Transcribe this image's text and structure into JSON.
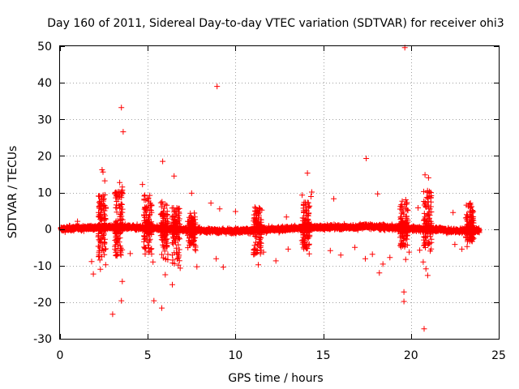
{
  "chart_data": {
    "type": "scatter",
    "title": "Day 160 of 2011, Sidereal Day-to-day VTEC variation (SDTVAR) for receiver ohi3",
    "xlabel": "GPS time / hours",
    "ylabel": "SDTVAR / TECUs",
    "xlim": [
      0,
      25
    ],
    "ylim": [
      -30,
      50
    ],
    "xticks": [
      "0",
      "5",
      "10",
      "15",
      "20",
      "25"
    ],
    "yticks": [
      "-30",
      "-20",
      "-10",
      "0",
      "10",
      "20",
      "30",
      "40",
      "50"
    ],
    "grid": true,
    "marker": "+",
    "series": [
      {
        "name": "SDTVAR",
        "color": "#ff0000",
        "outliers": [
          [
            3.5,
            33.2
          ],
          [
            3.6,
            26.6
          ],
          [
            8.95,
            39.0
          ],
          [
            19.65,
            49.6
          ],
          [
            17.45,
            19.3
          ],
          [
            14.1,
            15.3
          ],
          [
            2.4,
            16.2
          ],
          [
            2.45,
            15.6
          ],
          [
            2.55,
            13.2
          ],
          [
            5.85,
            18.5
          ],
          [
            6.5,
            14.5
          ],
          [
            3.4,
            12.7
          ],
          [
            3.55,
            11.5
          ],
          [
            4.7,
            12.2
          ],
          [
            20.8,
            14.8
          ],
          [
            21.0,
            14.0
          ],
          [
            2.5,
            6.5
          ],
          [
            8.6,
            7.1
          ],
          [
            9.1,
            5.5
          ],
          [
            12.9,
            3.3
          ],
          [
            15.6,
            8.3
          ],
          [
            18.1,
            9.6
          ],
          [
            19.5,
            7.6
          ],
          [
            19.7,
            8.0
          ],
          [
            20.4,
            5.8
          ],
          [
            20.95,
            8.5
          ],
          [
            14.35,
            10.1
          ],
          [
            14.3,
            8.9
          ],
          [
            13.8,
            9.3
          ],
          [
            11.5,
            5.2
          ],
          [
            7.5,
            9.8
          ],
          [
            1.0,
            2.1
          ],
          [
            10.0,
            4.8
          ],
          [
            22.4,
            4.5
          ],
          [
            3.0,
            -23.3
          ],
          [
            3.5,
            -19.6
          ],
          [
            3.55,
            -14.3
          ],
          [
            5.35,
            -19.6
          ],
          [
            5.8,
            -21.6
          ],
          [
            6.4,
            -15.2
          ],
          [
            6.0,
            -12.5
          ],
          [
            1.9,
            -12.3
          ],
          [
            1.8,
            -8.9
          ],
          [
            2.3,
            -11.0
          ],
          [
            2.6,
            -9.8
          ],
          [
            4.0,
            -6.7
          ],
          [
            5.3,
            -9.0
          ],
          [
            6.85,
            -10.7
          ],
          [
            7.8,
            -10.3
          ],
          [
            9.3,
            -10.4
          ],
          [
            8.9,
            -8.1
          ],
          [
            11.3,
            -9.8
          ],
          [
            11.1,
            -6.8
          ],
          [
            11.6,
            -6.3
          ],
          [
            12.3,
            -8.7
          ],
          [
            13.0,
            -5.5
          ],
          [
            14.2,
            -6.8
          ],
          [
            15.4,
            -5.9
          ],
          [
            16.0,
            -7.1
          ],
          [
            17.8,
            -6.9
          ],
          [
            18.2,
            -12.0
          ],
          [
            18.4,
            -9.6
          ],
          [
            18.8,
            -7.8
          ],
          [
            19.6,
            -17.2
          ],
          [
            19.6,
            -19.8
          ],
          [
            19.7,
            -8.3
          ],
          [
            19.9,
            -6.3
          ],
          [
            20.5,
            -5.8
          ],
          [
            20.75,
            -27.3
          ],
          [
            20.85,
            -10.9
          ],
          [
            20.95,
            -12.7
          ],
          [
            20.7,
            -9.0
          ],
          [
            21.1,
            -6.0
          ],
          [
            23.2,
            -4.8
          ],
          [
            22.5,
            -4.2
          ],
          [
            22.9,
            -5.5
          ],
          [
            17.4,
            -8.1
          ],
          [
            16.8,
            -5.0
          ]
        ],
        "spikes": [
          [
            2.4,
            9.5,
            -8.5
          ],
          [
            3.35,
            11.0,
            -7.5
          ],
          [
            5.0,
            9.5,
            -7.0
          ],
          [
            5.95,
            7.5,
            -9.0
          ],
          [
            6.6,
            6.0,
            -10.0
          ],
          [
            7.5,
            4.5,
            -6.0
          ],
          [
            11.25,
            6.0,
            -7.0
          ],
          [
            14.0,
            7.5,
            -5.5
          ],
          [
            19.6,
            7.5,
            -5.0
          ],
          [
            20.95,
            10.5,
            -5.5
          ],
          [
            23.35,
            7.5,
            -3.5
          ]
        ]
      }
    ]
  }
}
